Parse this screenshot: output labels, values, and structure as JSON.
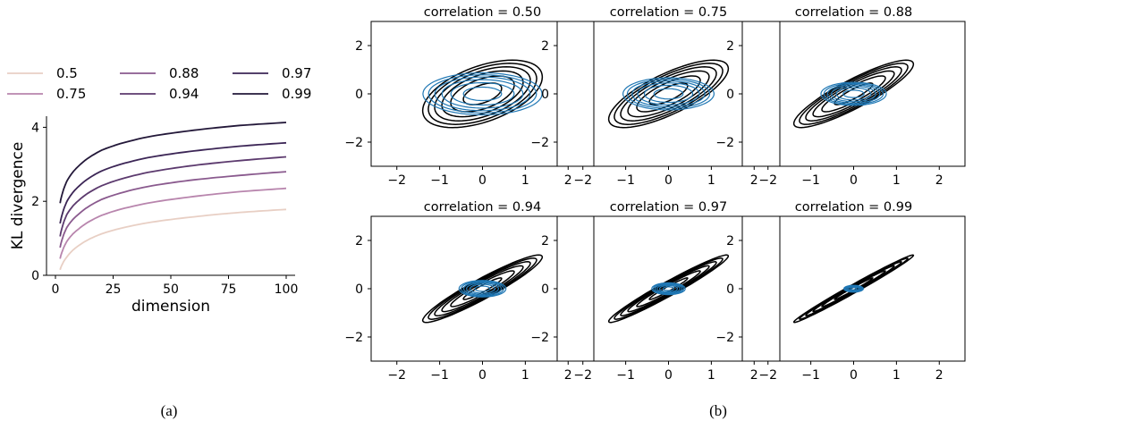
{
  "chart_data": [
    {
      "type": "line",
      "xlabel": "dimension",
      "ylabel": "KL divergence",
      "xlim": [
        0,
        100
      ],
      "ylim": [
        0,
        4.3
      ],
      "xticks": [
        0,
        25,
        50,
        75,
        100
      ],
      "yticks": [
        0,
        2,
        4
      ],
      "legend_position": "top",
      "grid": false,
      "colors": [
        "#e8cfc4",
        "#b885ad",
        "#8a5a8e",
        "#5c3a6e",
        "#3c2656",
        "#231839"
      ],
      "series": [
        {
          "name": "0.5",
          "x": [
            2,
            5,
            10,
            20,
            40,
            60,
            80,
            100
          ],
          "values": [
            0.15,
            0.5,
            0.8,
            1.12,
            1.42,
            1.58,
            1.7,
            1.78
          ]
        },
        {
          "name": "0.75",
          "x": [
            2,
            5,
            10,
            20,
            40,
            60,
            80,
            100
          ],
          "values": [
            0.45,
            0.92,
            1.25,
            1.62,
            1.95,
            2.13,
            2.26,
            2.35
          ]
        },
        {
          "name": "0.88",
          "x": [
            2,
            5,
            10,
            20,
            40,
            60,
            80,
            100
          ],
          "values": [
            0.75,
            1.3,
            1.65,
            2.05,
            2.4,
            2.58,
            2.7,
            2.8
          ]
        },
        {
          "name": "0.94",
          "x": [
            2,
            5,
            10,
            20,
            40,
            60,
            80,
            100
          ],
          "values": [
            1.05,
            1.65,
            2.02,
            2.42,
            2.78,
            2.97,
            3.1,
            3.2
          ]
        },
        {
          "name": "0.97",
          "x": [
            2,
            5,
            10,
            20,
            40,
            60,
            80,
            100
          ],
          "values": [
            1.4,
            2.0,
            2.4,
            2.82,
            3.18,
            3.36,
            3.49,
            3.58
          ]
        },
        {
          "name": "0.99",
          "x": [
            2,
            5,
            10,
            20,
            40,
            60,
            80,
            100
          ],
          "values": [
            1.95,
            2.55,
            2.95,
            3.38,
            3.74,
            3.92,
            4.05,
            4.13
          ]
        }
      ]
    },
    {
      "type": "contour",
      "titles": [
        "correlation = 0.50",
        "correlation = 0.75",
        "correlation = 0.88",
        "correlation = 0.94",
        "correlation = 0.97",
        "correlation = 0.99"
      ],
      "correlations": [
        0.5,
        0.75,
        0.88,
        0.94,
        0.97,
        0.99
      ],
      "xlim": [
        -2.6,
        2.6
      ],
      "ylim": [
        -3,
        3
      ],
      "xticks": [
        -2,
        -1,
        0,
        1,
        2
      ],
      "yticks": [
        -2,
        0,
        2
      ],
      "contour_levels": [
        0.2,
        0.55,
        0.9,
        1.25,
        1.6,
        1.95
      ],
      "true_color": "#000000",
      "approx_color": "#1f77b4"
    }
  ],
  "captions": {
    "a": "(a)",
    "b": "(b)"
  }
}
